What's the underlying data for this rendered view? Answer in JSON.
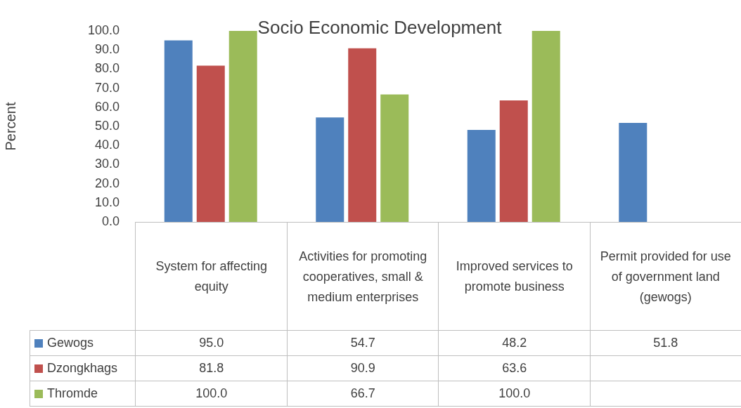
{
  "chart_data": {
    "type": "bar",
    "title": "Socio Economic Development",
    "ylabel": "Percent",
    "categories": [
      "System for affecting equity",
      "Activities for promoting cooperatives, small & medium enterprises",
      "Improved services to promote business",
      "Permit provided for use of government land (gewogs)"
    ],
    "series": [
      {
        "name": "Gewogs",
        "color": "#4f81bd",
        "values": [
          95.0,
          54.7,
          48.2,
          51.8
        ],
        "value_labels": [
          "95.0",
          "54.7",
          "48.2",
          "51.8"
        ]
      },
      {
        "name": "Dzongkhags",
        "color": "#c0504d",
        "values": [
          81.8,
          90.9,
          63.6,
          null
        ],
        "value_labels": [
          "81.8",
          "90.9",
          "63.6",
          null
        ]
      },
      {
        "name": "Thromde",
        "color": "#9bbb59",
        "values": [
          100.0,
          66.7,
          100.0,
          null
        ],
        "value_labels": [
          "100.0",
          "66.7",
          "100.0",
          null
        ]
      }
    ],
    "ylim": [
      0,
      100
    ],
    "yticks": [
      {
        "value": 0,
        "label": "0.0"
      },
      {
        "value": 10,
        "label": "10.0"
      },
      {
        "value": 20,
        "label": "20.0"
      },
      {
        "value": 30,
        "label": "30.0"
      },
      {
        "value": 40,
        "label": "40.0"
      },
      {
        "value": 50,
        "label": "50.0"
      },
      {
        "value": 60,
        "label": "60.0"
      },
      {
        "value": 70,
        "label": "70.0"
      },
      {
        "value": 80,
        "label": "80.0"
      },
      {
        "value": 90,
        "label": "90.0"
      },
      {
        "value": 100,
        "label": "100.0"
      }
    ],
    "grid": false,
    "legend": "bottom"
  }
}
